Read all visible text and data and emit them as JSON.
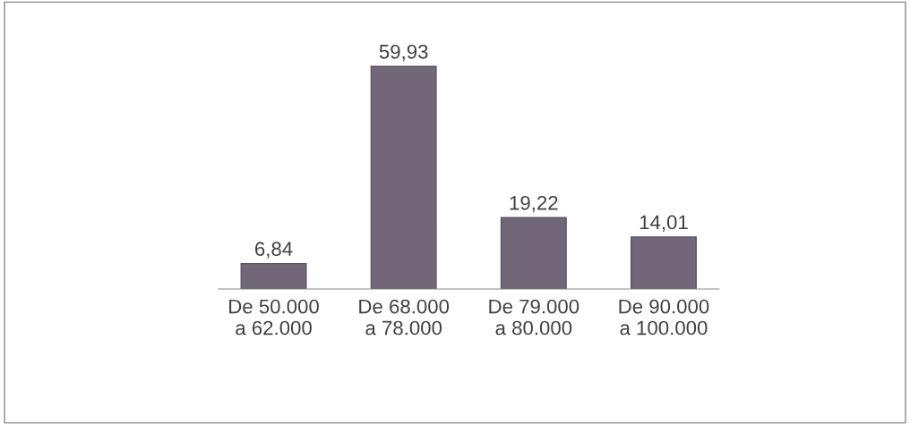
{
  "chart_data": {
    "type": "bar",
    "categories": [
      "De 50.000\na 62.000",
      "De 68.000\na 78.000",
      "De 79.000\na 80.000",
      "De 90.000\na 100.000"
    ],
    "values": [
      6.84,
      59.93,
      19.22,
      14.01
    ],
    "value_labels": [
      "6,84",
      "59,93",
      "19,22",
      "14,01"
    ],
    "color": "#716779",
    "legend": false
  }
}
